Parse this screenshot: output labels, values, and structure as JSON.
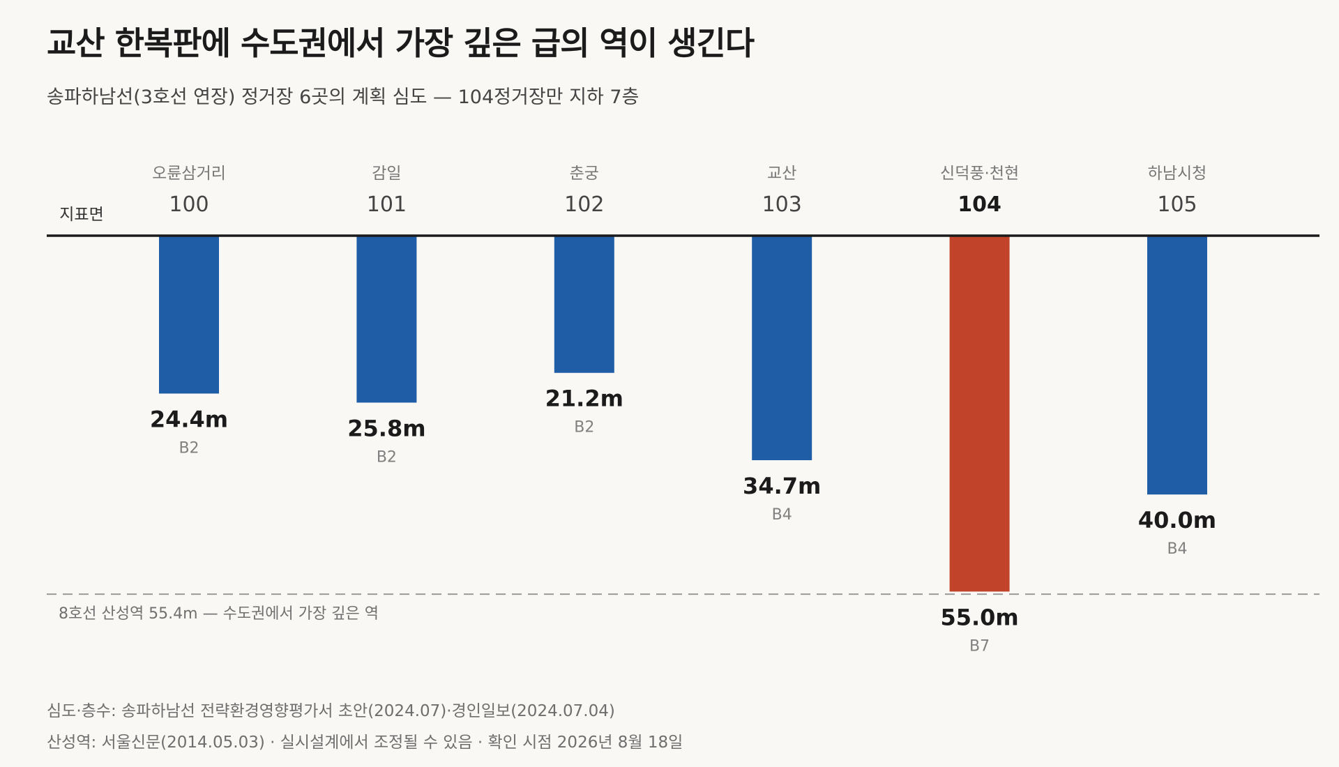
{
  "title": "교산 한복판에 수도권에서 가장 깊은 급의 역이 생긴다",
  "subtitle": "송파하남선(3호선 연장) 정거장 6곳의 계획 심도 — 104정거장만 지하 7층",
  "colors": {
    "bar": "#1f5ea7",
    "highlight": "#c0432a",
    "ground": "#1b1b1b",
    "reference_line": "#9a9a9a",
    "background": "#f9f8f4"
  },
  "chart_data": {
    "type": "bar",
    "orientation": "downward-from-ground",
    "ground_label": "지표면",
    "unit": "m",
    "ylim": [
      0,
      55.4
    ],
    "highlight_index": 4,
    "stations": [
      {
        "name": "오륜삼거리",
        "code": "100",
        "depth": 24.4,
        "depth_label": "24.4m",
        "floor": "B2"
      },
      {
        "name": "감일",
        "code": "101",
        "depth": 25.8,
        "depth_label": "25.8m",
        "floor": "B2"
      },
      {
        "name": "춘궁",
        "code": "102",
        "depth": 21.2,
        "depth_label": "21.2m",
        "floor": "B2"
      },
      {
        "name": "교산",
        "code": "103",
        "depth": 34.7,
        "depth_label": "34.7m",
        "floor": "B4"
      },
      {
        "name": "신덕풍·천현",
        "code": "104",
        "depth": 55.0,
        "depth_label": "55.0m",
        "floor": "B7"
      },
      {
        "name": "하남시청",
        "code": "105",
        "depth": 40.0,
        "depth_label": "40.0m",
        "floor": "B4"
      }
    ],
    "reference": {
      "value": 55.4,
      "label": "8호선 산성역 55.4m — 수도권에서 가장 깊은 역"
    }
  },
  "sources": {
    "line1": "심도·층수: 송파하남선 전략환경영향평가서 초안(2024.07)·경인일보(2024.07.04)",
    "line2": "산성역: 서울신문(2014.05.03) · 실시설계에서 조정될 수 있음 · 확인 시점 2026년 8월 18일"
  }
}
